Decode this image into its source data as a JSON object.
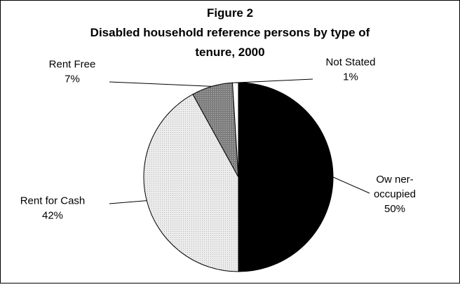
{
  "chart_data": {
    "type": "pie",
    "title": [
      "Figure 2",
      "Disabled household reference persons by type of",
      "tenure, 2000"
    ],
    "slices": [
      {
        "name": "Ow ner-occupied",
        "label_lines": [
          "Ow ner-",
          "occupied"
        ],
        "value": 50,
        "value_label": "50%",
        "color": "#000000"
      },
      {
        "name": "Rent for Cash",
        "label_lines": [
          "Rent for Cash"
        ],
        "value": 42,
        "value_label": "42%",
        "color": "#e4e4e4"
      },
      {
        "name": "Rent Free",
        "label_lines": [
          "Rent Free"
        ],
        "value": 7,
        "value_label": "7%",
        "color": "#8a8a8a"
      },
      {
        "name": "Not Stated",
        "label_lines": [
          "Not Stated"
        ],
        "value": 1,
        "value_label": "1%",
        "color": "#ffffff"
      }
    ]
  }
}
